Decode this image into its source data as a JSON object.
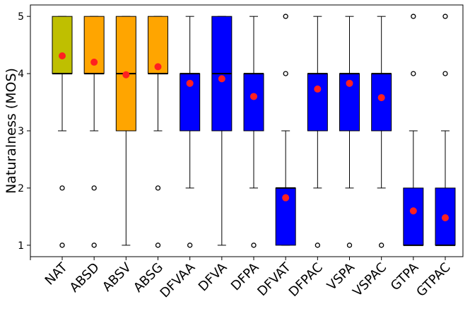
{
  "chart_data": {
    "type": "box",
    "title": "",
    "xlabel": "",
    "ylabel": "Naturalness (MOS)",
    "ylim": [
      0.8,
      5.2
    ],
    "yticks": [
      1,
      2,
      3,
      4,
      5
    ],
    "grid": false,
    "legend": "none",
    "mean_marker_color": "#ff2020",
    "categories": [
      "NAT",
      "ABSD",
      "ABSV",
      "ABSG",
      "DFVAA",
      "DFVA",
      "DFPA",
      "DFVAT",
      "DFPAC",
      "VSPA",
      "VSPAC",
      "GTPA",
      "GTPAC"
    ],
    "boxes": [
      {
        "label": "NAT",
        "color": "#bfbf00",
        "whisker_low": 3,
        "q1": 4,
        "median": 4,
        "q3": 5,
        "whisker_high": 5,
        "mean": 4.31,
        "outliers": [
          2,
          1
        ]
      },
      {
        "label": "ABSD",
        "color": "#ffa500",
        "whisker_low": 3,
        "q1": 4,
        "median": 4,
        "q3": 5,
        "whisker_high": 5,
        "mean": 4.2,
        "outliers": [
          2,
          1
        ]
      },
      {
        "label": "ABSV",
        "color": "#ffa500",
        "whisker_low": 1,
        "q1": 3,
        "median": 4,
        "q3": 5,
        "whisker_high": 5,
        "mean": 3.98,
        "outliers": []
      },
      {
        "label": "ABSG",
        "color": "#ffa500",
        "whisker_low": 3,
        "q1": 4,
        "median": 4,
        "q3": 5,
        "whisker_high": 5,
        "mean": 4.12,
        "outliers": [
          2,
          1
        ]
      },
      {
        "label": "DFVAA",
        "color": "#0000ff",
        "whisker_low": 2,
        "q1": 3,
        "median": 4,
        "q3": 4,
        "whisker_high": 5,
        "mean": 3.83,
        "outliers": [
          1
        ]
      },
      {
        "label": "DFVA",
        "color": "#0000ff",
        "whisker_low": 1,
        "q1": 3,
        "median": 4,
        "q3": 5,
        "whisker_high": 5,
        "mean": 3.91,
        "outliers": []
      },
      {
        "label": "DFPA",
        "color": "#0000ff",
        "whisker_low": 2,
        "q1": 3,
        "median": 4,
        "q3": 4,
        "whisker_high": 5,
        "mean": 3.6,
        "outliers": [
          1
        ]
      },
      {
        "label": "DFVAT",
        "color": "#0000ff",
        "whisker_low": 1,
        "q1": 1,
        "median": 2,
        "q3": 2,
        "whisker_high": 3,
        "mean": 1.83,
        "outliers": [
          4,
          5
        ]
      },
      {
        "label": "DFPAC",
        "color": "#0000ff",
        "whisker_low": 2,
        "q1": 3,
        "median": 4,
        "q3": 4,
        "whisker_high": 5,
        "mean": 3.73,
        "outliers": [
          1
        ]
      },
      {
        "label": "VSPA",
        "color": "#0000ff",
        "whisker_low": 2,
        "q1": 3,
        "median": 4,
        "q3": 4,
        "whisker_high": 5,
        "mean": 3.83,
        "outliers": [
          1
        ]
      },
      {
        "label": "VSPAC",
        "color": "#0000ff",
        "whisker_low": 2,
        "q1": 3,
        "median": 4,
        "q3": 4,
        "whisker_high": 5,
        "mean": 3.58,
        "outliers": [
          1
        ]
      },
      {
        "label": "GTPA",
        "color": "#0000ff",
        "whisker_low": 1,
        "q1": 1,
        "median": 1,
        "q3": 2,
        "whisker_high": 3,
        "mean": 1.6,
        "outliers": [
          4,
          5
        ]
      },
      {
        "label": "GTPAC",
        "color": "#0000ff",
        "whisker_low": 1,
        "q1": 1,
        "median": 1,
        "q3": 2,
        "whisker_high": 3,
        "mean": 1.48,
        "outliers": [
          4,
          5
        ]
      }
    ]
  }
}
